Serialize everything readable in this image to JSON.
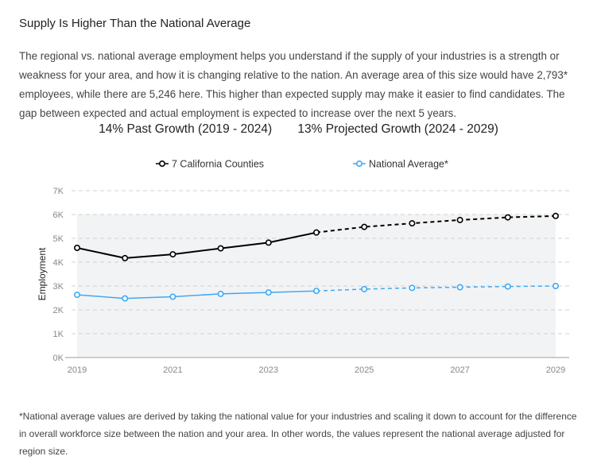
{
  "title": "Supply Is Higher Than the National Average",
  "description": "The regional vs. national average employment helps you understand if the supply of your industries is a strength or weakness for your area, and how it is changing relative to the nation. An average area of this size would have 2,793* employees, while there are 5,246 here. This higher than expected supply may make it easier to find candidates. The gap between expected and actual employment is expected to increase over the next 5 years.",
  "past_growth": "14% Past Growth (2019 - 2024)",
  "projected_growth": "13% Projected Growth (2024 - 2029)",
  "footnote": "*National average values are derived by taking the national value for your industries and scaling it down to account for the difference in overall workforce size between the nation and your area. In other words, the values represent the national average adjusted for region size.",
  "chart_data": {
    "type": "line",
    "ylabel": "Employment",
    "xlabel": "",
    "ylim": [
      0,
      7000
    ],
    "yticks": [
      "0K",
      "1K",
      "2K",
      "3K",
      "4K",
      "5K",
      "6K",
      "7K"
    ],
    "xticks": [
      "2019",
      "2021",
      "2023",
      "2025",
      "2027",
      "2029"
    ],
    "grid": true,
    "legend_position": "top",
    "x": [
      2019,
      2020,
      2021,
      2022,
      2023,
      2024,
      2025,
      2026,
      2027,
      2028,
      2029
    ],
    "projection_start": 2024,
    "series": [
      {
        "name": "7 California Counties",
        "color": "#000000",
        "values": [
          4600,
          4170,
          4330,
          4580,
          4820,
          5246,
          5480,
          5630,
          5770,
          5880,
          5940
        ]
      },
      {
        "name": "National Average*",
        "color": "#3fa9f5",
        "values": [
          2630,
          2480,
          2550,
          2670,
          2730,
          2793,
          2870,
          2920,
          2950,
          2980,
          3000
        ]
      }
    ]
  }
}
